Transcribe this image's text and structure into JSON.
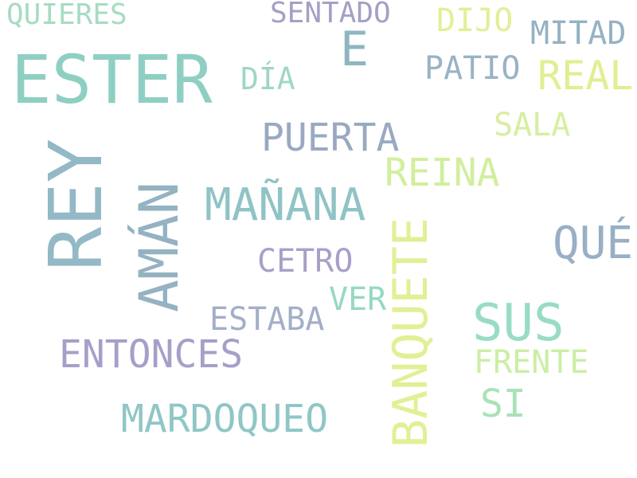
{
  "words": [
    {
      "text": "QUIERES",
      "color": "#a6dcc0"
    },
    {
      "text": "SENTADO",
      "color": "#a4a0c4"
    },
    {
      "text": "DIJO",
      "color": "#e3ee97"
    },
    {
      "text": "MITAD",
      "color": "#94b2c2"
    },
    {
      "text": "ESTER",
      "color": "#8fcfc3"
    },
    {
      "text": "E",
      "color": "#8fb6c0"
    },
    {
      "text": "DÍA",
      "color": "#9fd6c6"
    },
    {
      "text": "PATIO",
      "color": "#98b3c4"
    },
    {
      "text": "REAL",
      "color": "#e2ee91"
    },
    {
      "text": "SALA",
      "color": "#d7eea0"
    },
    {
      "text": "PUERTA",
      "color": "#9aa9c2"
    },
    {
      "text": "REY",
      "color": "#93b8c6"
    },
    {
      "text": "REINA",
      "color": "#d2ee9c"
    },
    {
      "text": "AMÁN",
      "color": "#94b2c2"
    },
    {
      "text": "MAÑANA",
      "color": "#90c3c5"
    },
    {
      "text": "QUÉ",
      "color": "#98afc4"
    },
    {
      "text": "CETRO",
      "color": "#a99fc9"
    },
    {
      "text": "BANQUETE",
      "color": "#e2ef94"
    },
    {
      "text": "VER",
      "color": "#96d8c3"
    },
    {
      "text": "ESTABA",
      "color": "#a3aec8"
    },
    {
      "text": "SUS",
      "color": "#98dcc4"
    },
    {
      "text": "ENTONCES",
      "color": "#a4a0c8"
    },
    {
      "text": "FRENTE",
      "color": "#cbeea4"
    },
    {
      "text": "SI",
      "color": "#a9e2b6"
    },
    {
      "text": "MARDOQUEO",
      "color": "#90c6c6"
    }
  ]
}
